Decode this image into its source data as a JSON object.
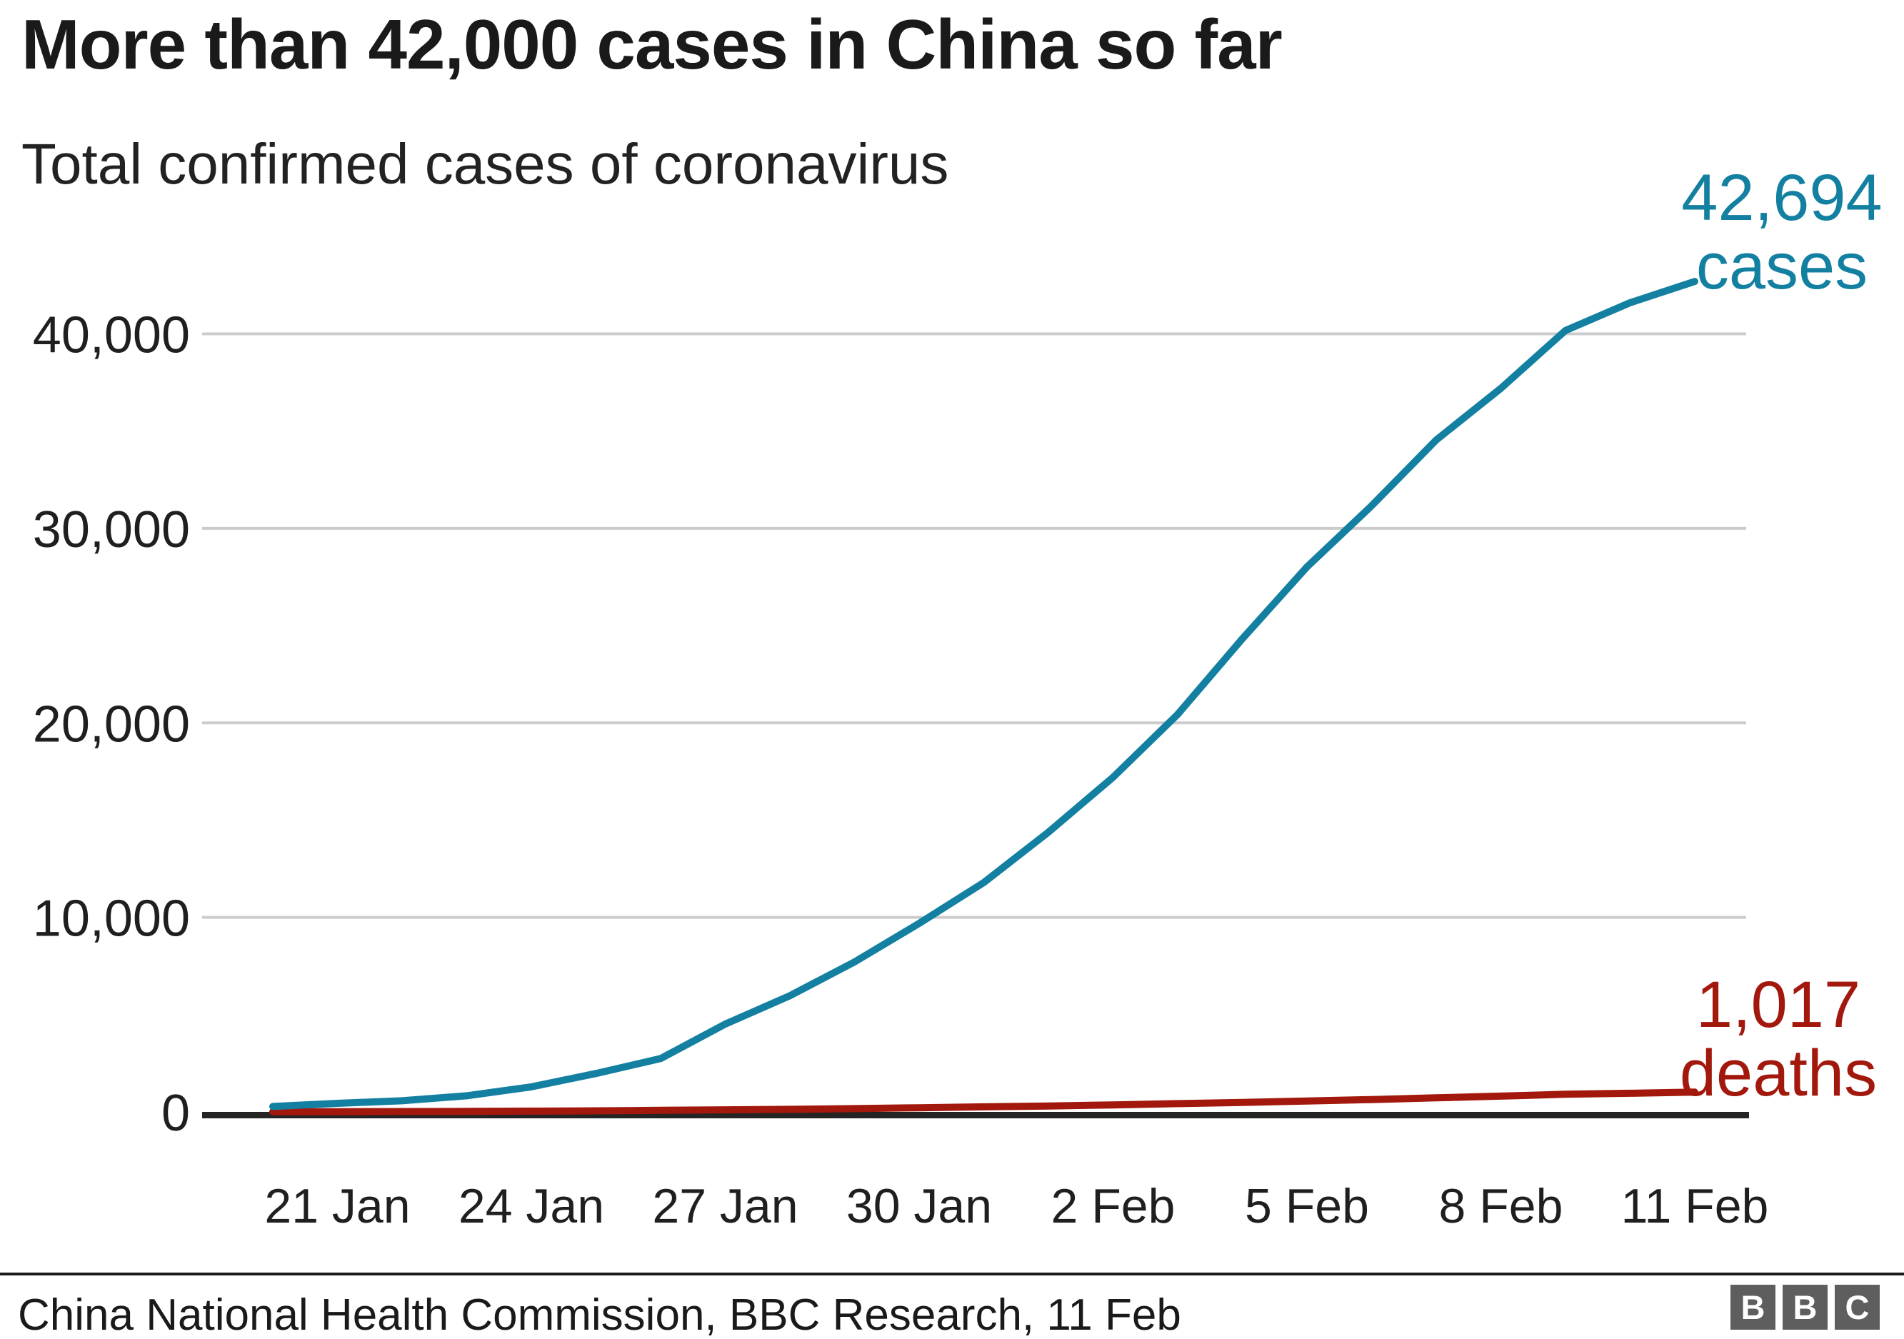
{
  "page": {
    "title": "More than 42,000 cases in China so far",
    "subtitle": "Total confirmed cases of coronavirus"
  },
  "footer": {
    "source": "China National Health Commission, BBC Research, 11 Feb",
    "logo_letters": [
      "B",
      "B",
      "C"
    ]
  },
  "colors": {
    "cases": "#1380a1",
    "deaths": "#a2180d",
    "grid": "#cccccc",
    "axis_line": "#242424",
    "text": "#1f1f1f"
  },
  "chart_data": {
    "type": "line",
    "title": "More than 42,000 cases in China so far",
    "subtitle": "Total confirmed cases of coronavirus",
    "x": [
      "20 Jan",
      "21 Jan",
      "22 Jan",
      "23 Jan",
      "24 Jan",
      "25 Jan",
      "26 Jan",
      "27 Jan",
      "28 Jan",
      "29 Jan",
      "30 Jan",
      "31 Jan",
      "1 Feb",
      "2 Feb",
      "3 Feb",
      "4 Feb",
      "5 Feb",
      "6 Feb",
      "7 Feb",
      "8 Feb",
      "9 Feb",
      "10 Feb",
      "11 Feb"
    ],
    "series": [
      {
        "name": "deaths",
        "color": "#a2180d",
        "end_label": [
          "1,017",
          "deaths"
        ],
        "values": [
          6,
          9,
          17,
          25,
          41,
          56,
          80,
          106,
          132,
          170,
          213,
          259,
          304,
          361,
          425,
          490,
          563,
          636,
          722,
          811,
          908,
          960,
          1017
        ]
      },
      {
        "name": "cases",
        "color": "#1380a1",
        "end_label": [
          "42,694",
          "cases"
        ],
        "values": [
          278,
          440,
          571,
          830,
          1287,
          1975,
          2744,
          4515,
          5974,
          7711,
          9692,
          11791,
          14380,
          17205,
          20438,
          24324,
          28018,
          31161,
          34546,
          37198,
          40171,
          41600,
          42694
        ]
      }
    ],
    "y_ticks": [
      {
        "value": 40000,
        "label": "40,000"
      },
      {
        "value": 30000,
        "label": "30,000"
      },
      {
        "value": 20000,
        "label": "20,000"
      },
      {
        "value": 10000,
        "label": "10,000"
      },
      {
        "value": 0,
        "label": "0"
      }
    ],
    "x_tick_labels": [
      "21 Jan",
      "24 Jan",
      "27 Jan",
      "30 Jan",
      "2 Feb",
      "5 Feb",
      "8 Feb",
      "11 Feb"
    ],
    "x_tick_days": [
      1,
      4,
      7,
      10,
      13,
      16,
      19,
      22
    ],
    "ylim": [
      0,
      43000
    ],
    "grid": "horizontal",
    "legend_position": "end-of-line-labels"
  }
}
